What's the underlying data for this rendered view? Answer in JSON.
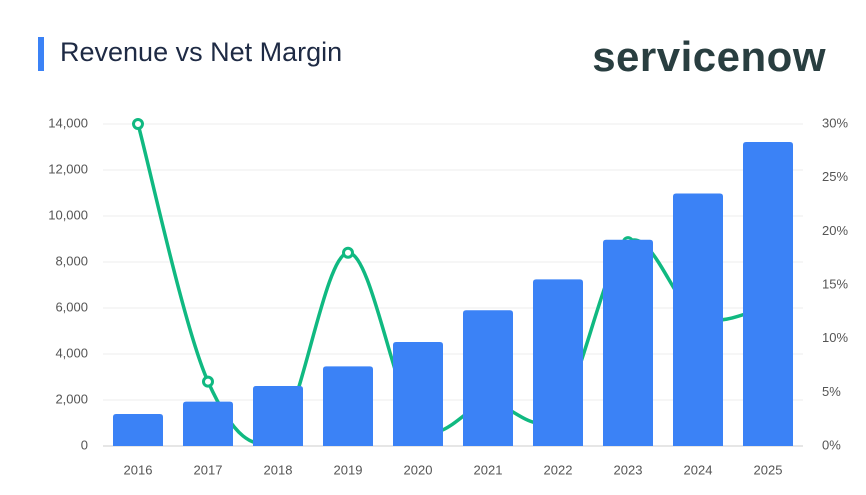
{
  "brand": "servicenow",
  "chart_data": {
    "type": "bar-line",
    "title": "Revenue vs Net Margin",
    "categories": [
      "2016",
      "2017",
      "2018",
      "2019",
      "2020",
      "2021",
      "2022",
      "2023",
      "2024",
      "2025"
    ],
    "series": [
      {
        "name": "Revenue",
        "type": "bar",
        "color": "#3b82f6",
        "values": [
          1390,
          1930,
          2610,
          3460,
          4520,
          5900,
          7245,
          8970,
          10980,
          13220
        ]
      },
      {
        "name": "Net Margin",
        "type": "line",
        "axis": "y2",
        "color": "#10b981",
        "values": [
          30,
          6,
          1,
          18,
          2,
          4,
          3,
          19,
          12,
          13
        ]
      }
    ],
    "ylim": [
      0,
      14000
    ],
    "yticks": [
      0,
      {
        "value": 2000,
        "label": "2,000"
      },
      {
        "value": 4000,
        "label": "4,000"
      },
      {
        "value": 6000,
        "label": "6,000"
      },
      {
        "value": 8000,
        "label": "8,000"
      },
      {
        "value": 10000,
        "label": "10,000"
      },
      {
        "value": 12000,
        "label": "12,000"
      },
      {
        "value": 14000,
        "label": "14,000"
      }
    ],
    "y2lim": [
      0,
      30
    ],
    "y2ticks": [
      {
        "value": 0,
        "label": "0%"
      },
      {
        "value": 5,
        "label": "5%"
      },
      {
        "value": 10,
        "label": "10%"
      },
      {
        "value": 15,
        "label": "15%"
      },
      {
        "value": 20,
        "label": "20%"
      },
      {
        "value": 25,
        "label": "25%"
      },
      {
        "value": 30,
        "label": "30%"
      }
    ],
    "grid": true
  }
}
